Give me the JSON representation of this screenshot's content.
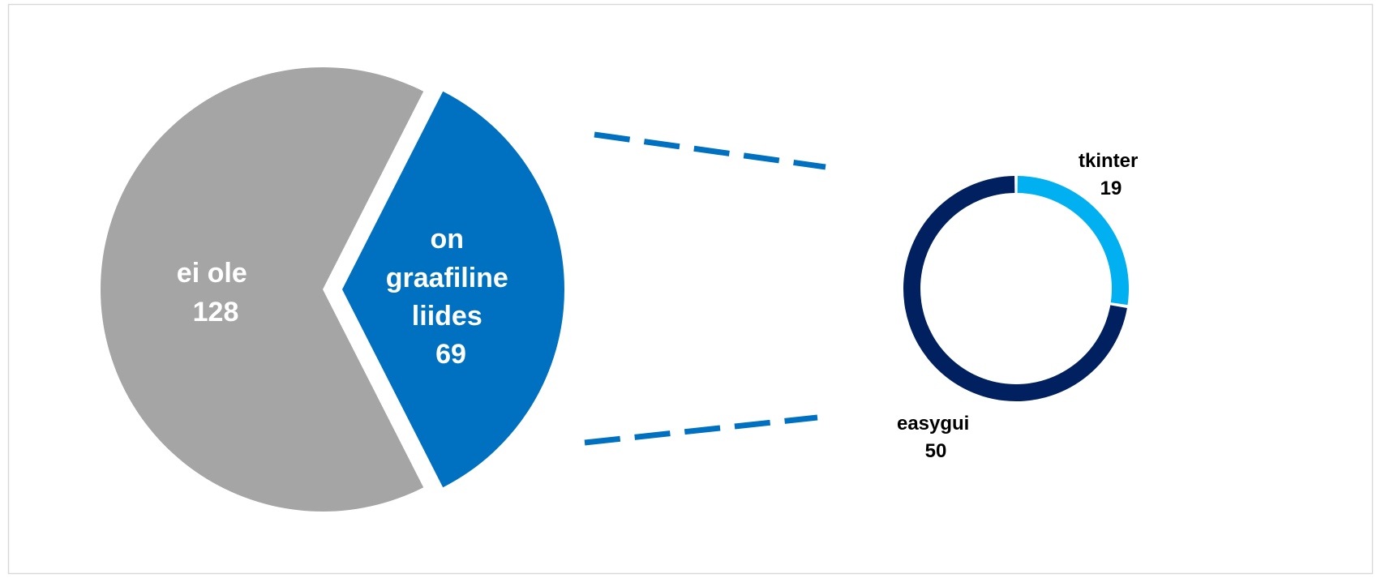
{
  "chart_data": {
    "type": "pie",
    "main_pie": {
      "slices": [
        {
          "label_lines": [
            "ei ole"
          ],
          "value": "128",
          "color": "#a5a5a5"
        },
        {
          "label_lines": [
            "on",
            "graafiline",
            "liides"
          ],
          "value": "69",
          "color": "#0070c0"
        }
      ]
    },
    "sub_donut": {
      "slices": [
        {
          "label": "tkinter",
          "value": "19",
          "color": "#00b0f0"
        },
        {
          "label": "easygui",
          "value": "50",
          "color": "#002060"
        }
      ]
    },
    "connector_color": "#0070c0"
  }
}
